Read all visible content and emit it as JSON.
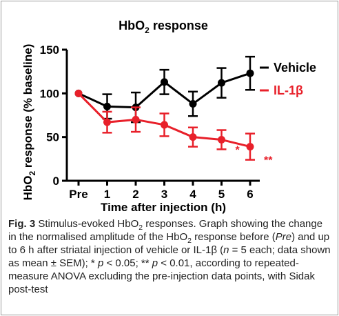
{
  "chart_data": {
    "type": "line",
    "title": "HbO2 response",
    "title_main": "HbO",
    "title_sub": "2",
    "title_rest": " response",
    "ylabel_main": "HbO",
    "ylabel_sub": "2",
    "ylabel_rest": " response (% baseline)",
    "xlabel": "Time after injection (h)",
    "categories": [
      "Pre",
      "1",
      "2",
      "3",
      "4",
      "5",
      "6"
    ],
    "yticks": [
      "0",
      "50",
      "100",
      "150"
    ],
    "ylim": [
      0,
      150
    ],
    "legend_position": "top-right",
    "series": [
      {
        "name": "Vehicle",
        "color": "#000000",
        "values": [
          100,
          85,
          84,
          113,
          88,
          112,
          123
        ],
        "errors": [
          0,
          14,
          17,
          14,
          14,
          17,
          19
        ]
      },
      {
        "name": "IL-1β",
        "color": "#e8202a",
        "values": [
          100,
          67,
          70,
          64,
          50,
          47,
          39
        ],
        "errors": [
          0,
          12,
          14,
          13,
          11,
          11,
          15
        ]
      }
    ],
    "annotations": [
      {
        "text": "*",
        "x": "5",
        "color": "#e8202a"
      },
      {
        "text": "**",
        "x": "6",
        "color": "#e8202a"
      }
    ]
  },
  "caption": {
    "fig_label": "Fig. 3",
    "s1": " Stimulus-evoked HbO",
    "sub1": "2",
    "s2": " responses. Graph showing the change in the normalised amplitude of the HbO",
    "sub2": "2",
    "s3": " response before (",
    "pre": "Pre",
    "s4": ") and up to 6 h after striatal injection of vehicle or IL-1β (",
    "n": "n",
    "s5": " = 5 each; data shown as mean ± SEM); * ",
    "p1": "p",
    "s6": " < 0.05; ** ",
    "p2": "p",
    "s7": " < 0.01, according to repeated-measure ANOVA excluding the pre-injection data points, with Sidak post-test"
  }
}
